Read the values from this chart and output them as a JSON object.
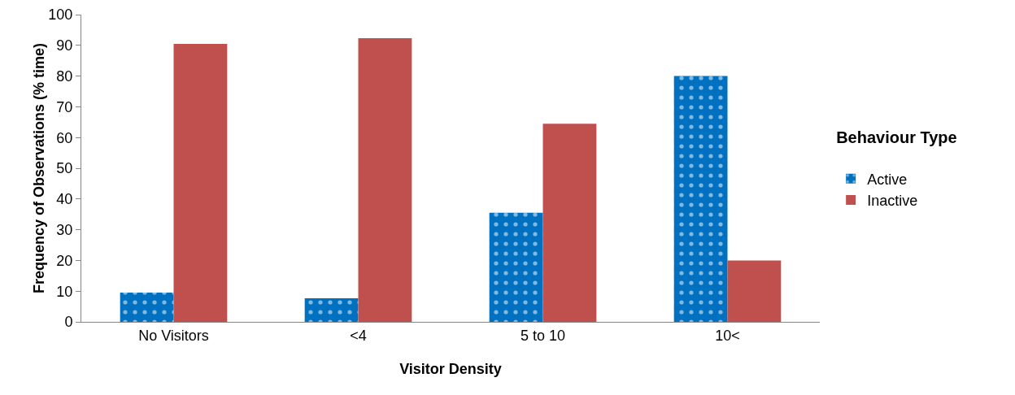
{
  "chart_data": {
    "type": "bar",
    "xlabel": "Visitor Density",
    "ylabel": "Frequency of Observations (% time)",
    "legend_title": "Behaviour Type",
    "categories": [
      "No Visitors",
      "<4",
      "5 to 10",
      "10<"
    ],
    "series": [
      {
        "name": "Active",
        "color": "#0070c0",
        "values": [
          9.5,
          7.7,
          35.5,
          80
        ]
      },
      {
        "name": "Inactive",
        "color": "#c0504d",
        "values": [
          90.5,
          92.3,
          64.5,
          20
        ]
      }
    ],
    "ylim": [
      0,
      100
    ],
    "yticks": [
      0,
      10,
      20,
      30,
      40,
      50,
      60,
      70,
      80,
      90,
      100
    ],
    "grid": false,
    "legend": "right"
  }
}
